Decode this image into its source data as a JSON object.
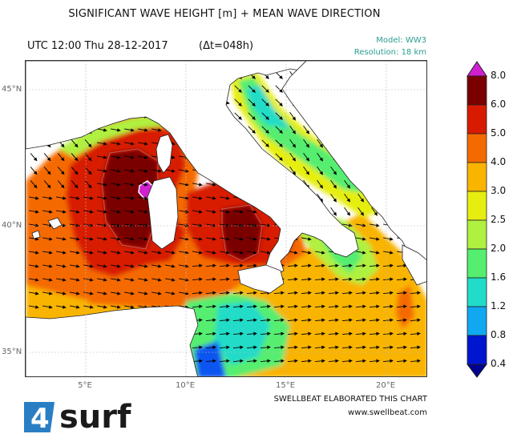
{
  "header": {
    "title": "SIGNIFICANT WAVE HEIGHT [m] + MEAN WAVE DIRECTION",
    "time": "UTC 12:00 Thu 28-12-2017",
    "delta": "(Δt=048h)",
    "model": "Model: WW3",
    "resolution": "Resolution: 18 km"
  },
  "axes": {
    "lat_labels": [
      "45°N",
      "40°N",
      "35°N"
    ],
    "lon_labels": [
      "5°E",
      "10°E",
      "15°E",
      "20°E"
    ]
  },
  "colorbar": {
    "levels": [
      "8.0",
      "6.0",
      "5.0",
      "4.0",
      "3.0",
      "2.5",
      "2.0",
      "1.6",
      "1.2",
      "0.8",
      "0.4"
    ],
    "colors": [
      "#7a0000",
      "#d81a00",
      "#f56a00",
      "#f9b400",
      "#e6ee10",
      "#b0f040",
      "#55ee70",
      "#20dcc8",
      "#10a8f0",
      "#0a55f0",
      "#0015d0"
    ],
    "overflow_top": "#d020d0",
    "overflow_bottom": "#000090"
  },
  "footer": {
    "credit": "SWELLBEAT ELABORATED THIS CHART",
    "website": "www.swellbeat.com",
    "logo_text": "surf",
    "logo_number": "4"
  }
}
